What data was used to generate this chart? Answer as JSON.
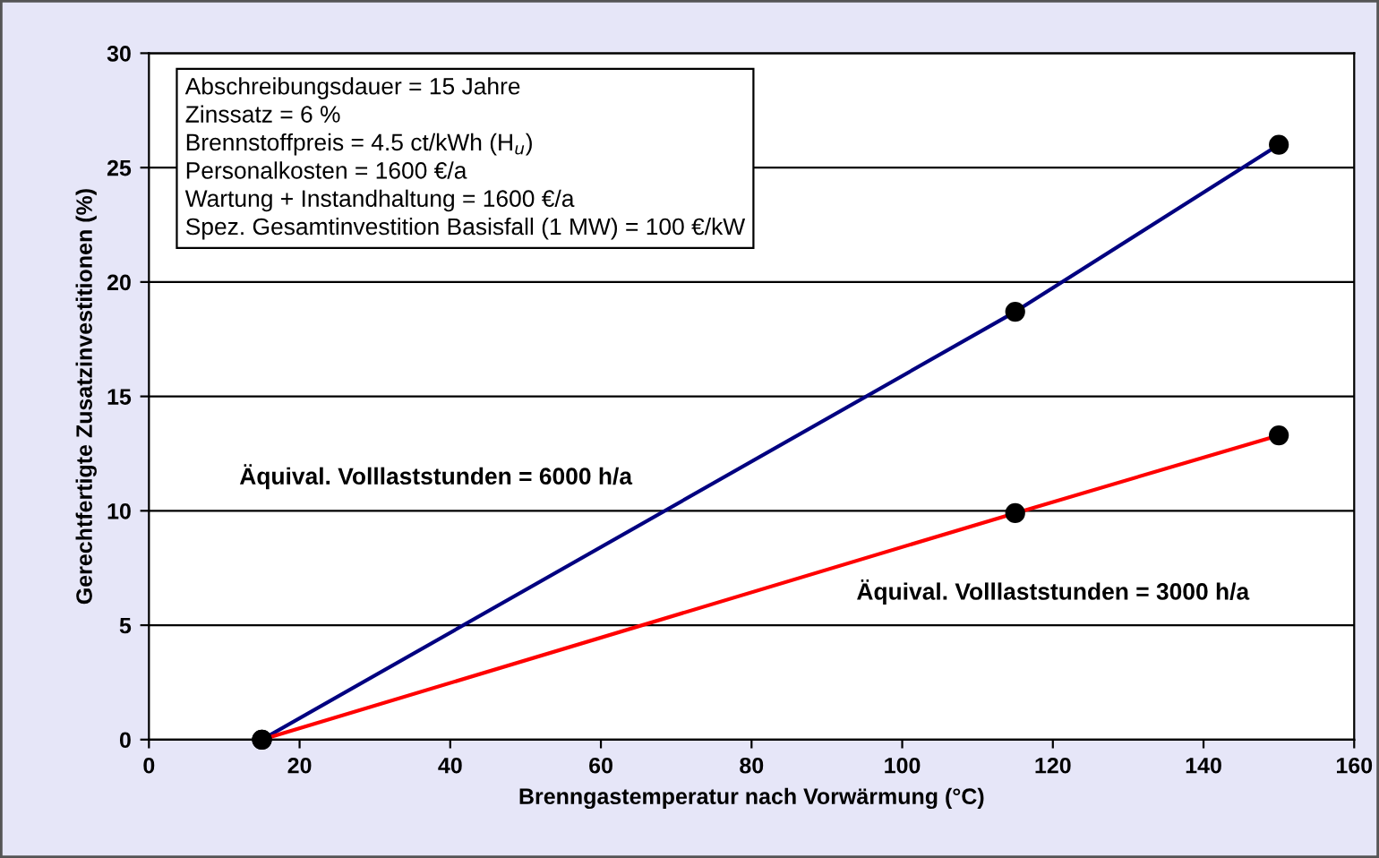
{
  "chart_data": {
    "type": "line",
    "xlabel": "Brenngastemperatur nach Vorwärmung (°C)",
    "ylabel": "Gerechtfertigte Zusatzinvestitionen (%)",
    "xlim": [
      0,
      160
    ],
    "xticks": [
      0,
      20,
      40,
      60,
      80,
      100,
      120,
      140,
      160
    ],
    "ylim": [
      0,
      30
    ],
    "yticks": [
      0,
      5,
      10,
      15,
      20,
      25,
      30
    ],
    "grid": "y",
    "marker": "circle",
    "line_style": "solid",
    "series": [
      {
        "name": "Äquival. Volllaststunden = 6000 h/a",
        "color": "#000080",
        "x": [
          15,
          115,
          150
        ],
        "values": [
          0,
          18.7,
          26
        ]
      },
      {
        "name": "Äquival. Volllaststunden = 3000 h/a",
        "color": "#ff0000",
        "x": [
          15,
          115,
          150
        ],
        "values": [
          0,
          9.9,
          13.3
        ]
      }
    ],
    "annotations": [
      "Abschreibungsdauer = 15 Jahre\nZinssatz = 6 %\nBrennstoffpreis = 4.5 ct/kWh (H$_{u}$)\nPersonalkosten = 1600 €/a\nWartung + Instandhaltung = 1600 €/a\nSpez. Gesamtinvestition Basisfall (1 MW) = 100 €/kW"
    ]
  }
}
